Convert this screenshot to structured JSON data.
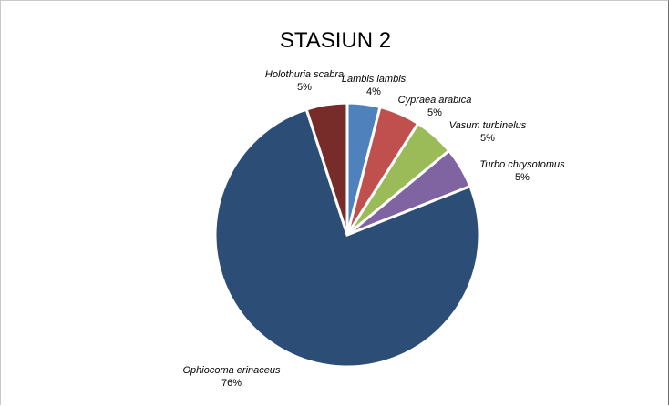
{
  "chart_data": {
    "type": "pie",
    "title": "STASIUN 2",
    "slices": [
      {
        "label": "Lambis lambis",
        "value": 4,
        "value_label": "4%",
        "color": "#4f81bd"
      },
      {
        "label": "Cypraea arabica",
        "value": 5,
        "value_label": "5%",
        "color": "#c0504d"
      },
      {
        "label": "Vasum turbinelus",
        "value": 5,
        "value_label": "5%",
        "color": "#9bbb59"
      },
      {
        "label": "Turbo chrysotomus",
        "value": 5,
        "value_label": "5%",
        "color": "#8064a2"
      },
      {
        "label": "Ophiocoma erinaceus",
        "value": 76,
        "value_label": "76%",
        "color": "#2c4d75"
      },
      {
        "label": "Holothuria scabra",
        "value": 5,
        "value_label": "5%",
        "color": "#772c2a"
      }
    ],
    "start_angle_deg": 0,
    "direction": "clockwise",
    "legend": "none",
    "data_labels": "outside"
  }
}
